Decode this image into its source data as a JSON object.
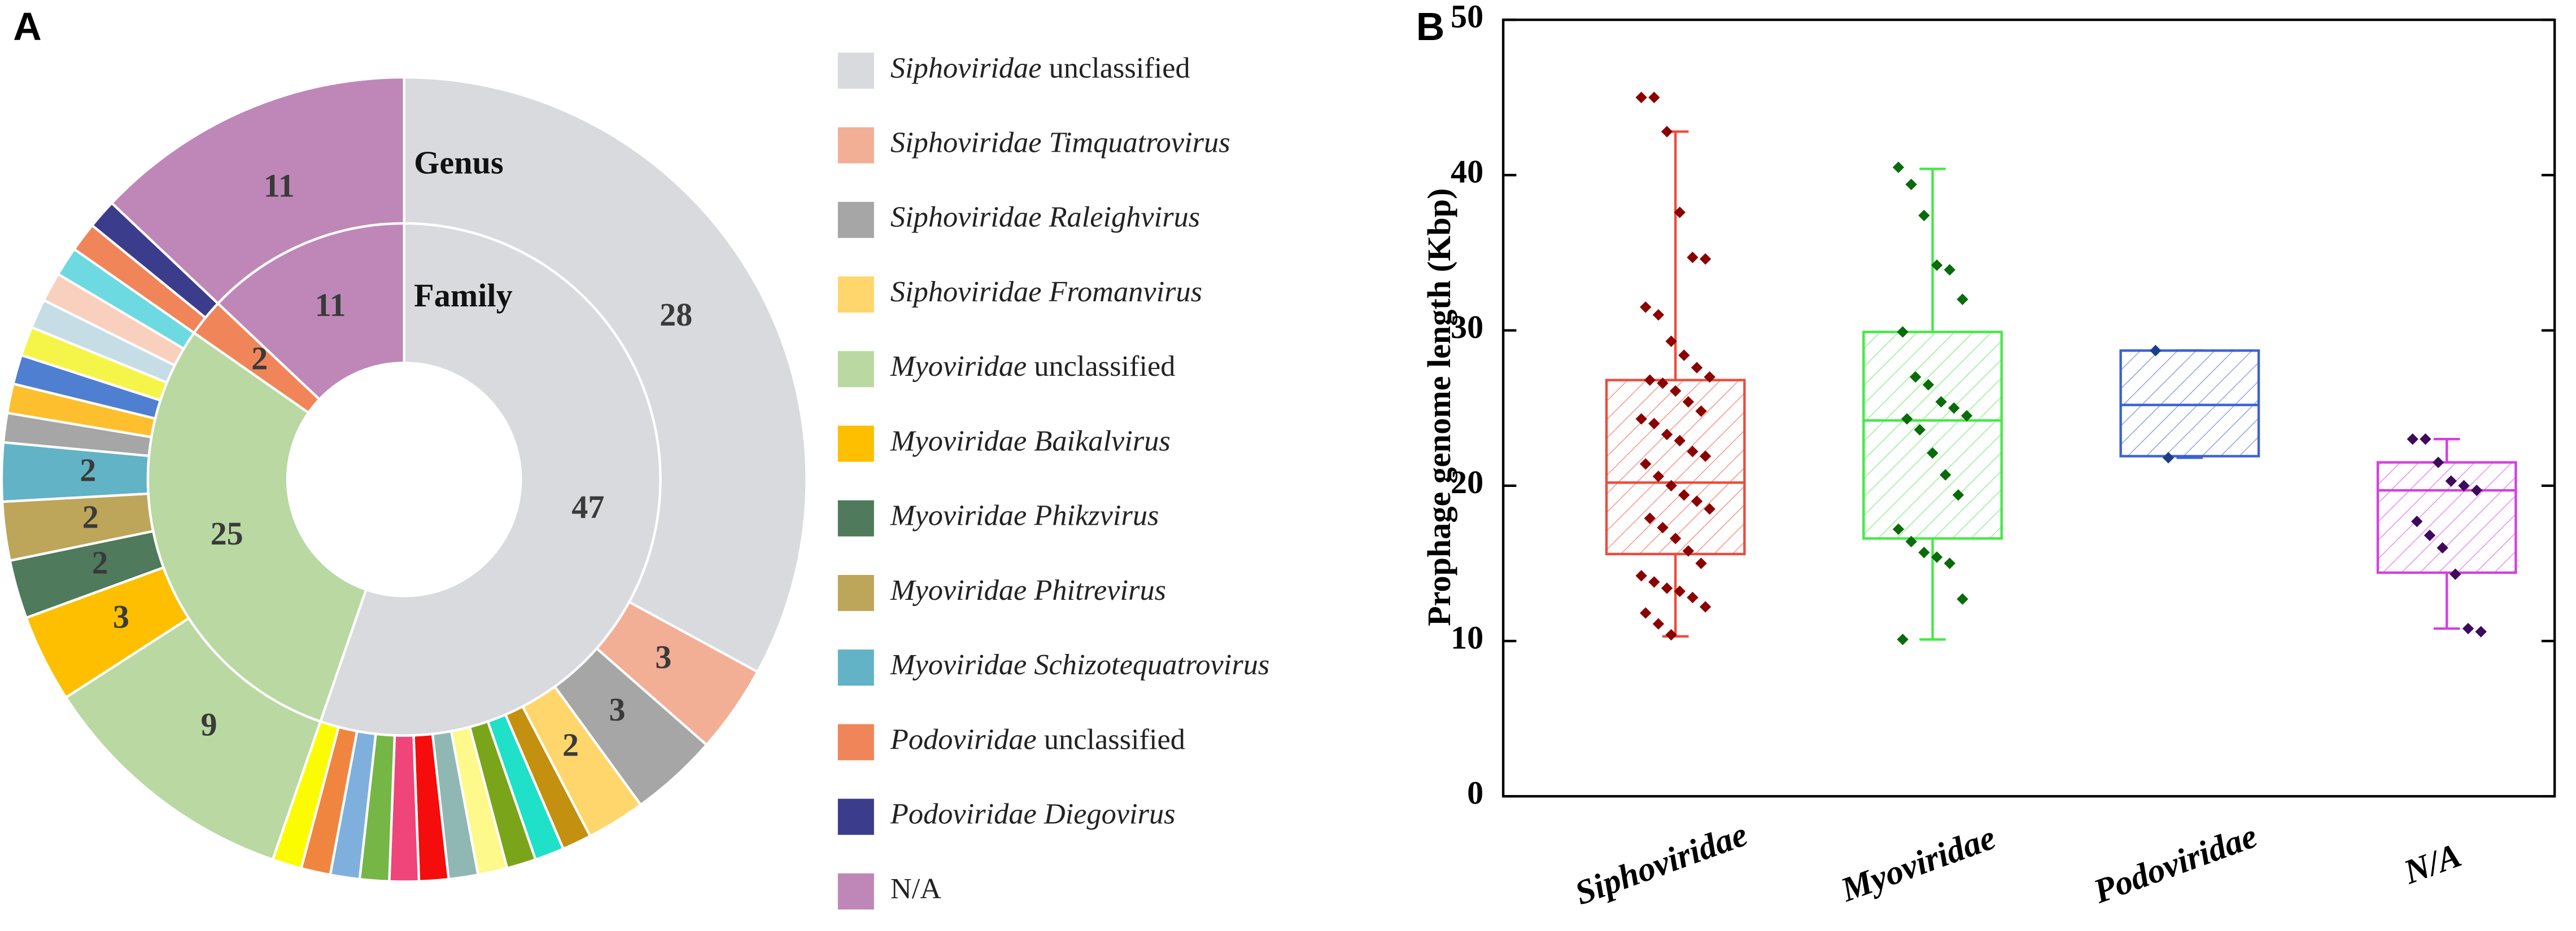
{
  "chart_data": [
    {
      "type": "donut",
      "panel": "A",
      "rings": [
        {
          "name": "Family",
          "values": [
            47,
            25,
            2,
            11
          ],
          "colors": [
            "#d8dadd",
            "#b9d8a2",
            "#f0855a",
            "#bf87b8"
          ]
        },
        {
          "name": "Genus",
          "values": [
            28,
            3,
            3,
            2,
            1,
            1,
            1,
            1,
            1,
            1,
            1,
            1,
            1,
            1,
            1,
            9,
            3,
            2,
            2,
            2,
            1,
            1,
            1,
            1,
            1,
            1,
            1,
            1,
            1,
            11
          ],
          "colors": [
            "#d8dadd",
            "#f3ae96",
            "#a6a6a6",
            "#fed66b",
            "#c4900f",
            "#1fe0c8",
            "#7aa51b",
            "#fdf98a",
            "#8fb8b5",
            "#f50c0c",
            "#f0457a",
            "#75b646",
            "#7fb0dd",
            "#f0853f",
            "#fcfc00",
            "#b9d8a2",
            "#fdbf00",
            "#4f7a5c",
            "#bda55a",
            "#62b3c6",
            "#a6a6a6",
            "#fdbf2d",
            "#4f7fd0",
            "#f5f549",
            "#c6dde5",
            "#f9cfbe",
            "#6dd9e0",
            "#f0855a",
            "#3c3c8c",
            "#bf87b8"
          ],
          "categories": [
            "Siphoviridae unclassified",
            "Siphoviridae Timquatrovirus",
            "Siphoviridae Raleighvirus",
            "Siphoviridae Fromanvirus",
            null,
            null,
            null,
            null,
            null,
            null,
            null,
            null,
            null,
            null,
            null,
            "Myoviridae unclassified",
            "Myoviridae Baikalvirus",
            "Myoviridae Phikzvirus",
            "Myoviridae Phitrevirus",
            "Myoviridae Schizotequatrovirus",
            null,
            null,
            null,
            null,
            null,
            null,
            null,
            "Podoviridae unclassified",
            "Podoviridae Diegovirus",
            "N/A"
          ]
        }
      ]
    },
    {
      "type": "box",
      "panel": "B",
      "ylabel": "Prophage genome length (Kbp)",
      "categories": [
        "Siphoviridae",
        "Myoviridae",
        "Podoviridae",
        "N/A"
      ],
      "whisker_low": [
        10.3,
        10.1,
        21.8,
        10.8
      ],
      "q1": [
        15.6,
        16.6,
        21.9,
        14.4
      ],
      "median": [
        20.2,
        24.2,
        25.2,
        19.7
      ],
      "q3": [
        26.8,
        29.9,
        28.7,
        21.5
      ],
      "whisker_high": [
        42.8,
        40.4,
        28.7,
        23
      ],
      "points": [
        [
          45,
          45,
          42.8,
          37.6,
          34.7,
          34.6,
          31.5,
          31,
          29.3,
          28.4,
          27.6,
          27,
          26.8,
          26.6,
          26.1,
          25.4,
          24.8,
          24.3,
          24,
          23.3,
          22.9,
          22.2,
          21.9,
          21.4,
          20.6,
          20,
          19.4,
          19,
          18.5,
          17.9,
          17.3,
          16.6,
          15.8,
          15,
          14.2,
          13.8,
          13.4,
          13.2,
          12.8,
          12.2,
          11.8,
          11.1,
          10.4
        ],
        [
          40.5,
          39.4,
          37.4,
          34.2,
          33.9,
          32,
          29.9,
          27,
          26.5,
          25.4,
          25,
          24.5,
          24.3,
          23.6,
          22.1,
          20.7,
          19.4,
          17.2,
          16.4,
          15.7,
          15.4,
          15,
          12.7,
          10.1
        ],
        [
          28.7,
          21.8
        ],
        [
          23,
          23,
          21.5,
          20.3,
          20,
          19.7,
          17.7,
          16.8,
          16,
          14.3,
          10.8,
          10.6
        ]
      ],
      "colors": [
        "#f04a3c",
        "#46e846",
        "#3d5fd9",
        "#d63fe0"
      ],
      "point_colors": [
        "#8b0000",
        "#0a6b0a",
        "#1a3d8f",
        "#3d0a5c"
      ],
      "ylim": [
        0,
        50
      ],
      "yticks": [
        0,
        10,
        20,
        30,
        40,
        50
      ]
    }
  ]
}
